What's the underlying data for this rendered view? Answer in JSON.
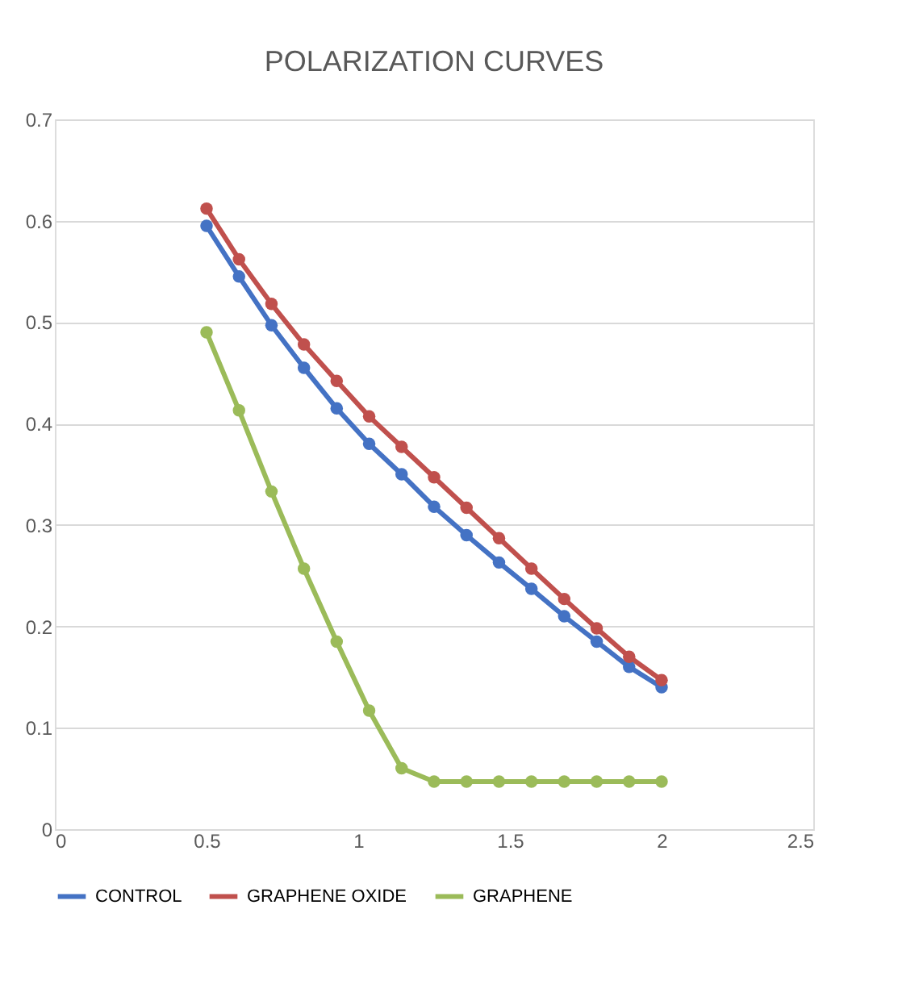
{
  "chart_data": {
    "type": "line",
    "title": "POLARIZATION CURVES",
    "x": [
      0.5,
      0.607,
      0.714,
      0.821,
      0.929,
      1.036,
      1.143,
      1.25,
      1.357,
      1.464,
      1.571,
      1.679,
      1.786,
      1.893,
      2.0
    ],
    "series": [
      {
        "name": "CONTROL",
        "color": "#4472c4",
        "values": [
          0.595,
          0.545,
          0.497,
          0.455,
          0.415,
          0.38,
          0.35,
          0.318,
          0.29,
          0.263,
          0.237,
          0.21,
          0.185,
          0.16,
          0.14
        ]
      },
      {
        "name": "GRAPHENE OXIDE",
        "color": "#c0504d",
        "values": [
          0.612,
          0.562,
          0.518,
          0.478,
          0.442,
          0.407,
          0.377,
          0.347,
          0.317,
          0.287,
          0.257,
          0.227,
          0.198,
          0.17,
          0.147
        ]
      },
      {
        "name": "GRAPHENE",
        "color": "#9bbb59",
        "values": [
          0.49,
          0.413,
          0.333,
          0.257,
          0.185,
          0.117,
          0.06,
          0.047,
          0.047,
          0.047,
          0.047,
          0.047,
          0.047,
          0.047,
          0.047
        ]
      }
    ],
    "xlim": [
      0,
      2.5
    ],
    "xticks": [
      0,
      0.5,
      1,
      1.5,
      2,
      2.5
    ],
    "ylim": [
      0,
      0.7
    ],
    "yticks": [
      0,
      0.1,
      0.2,
      0.3,
      0.4,
      0.5,
      0.6,
      0.7
    ],
    "grid": "y",
    "legend": "bottom",
    "marker": "circle",
    "line_style": "solid"
  }
}
